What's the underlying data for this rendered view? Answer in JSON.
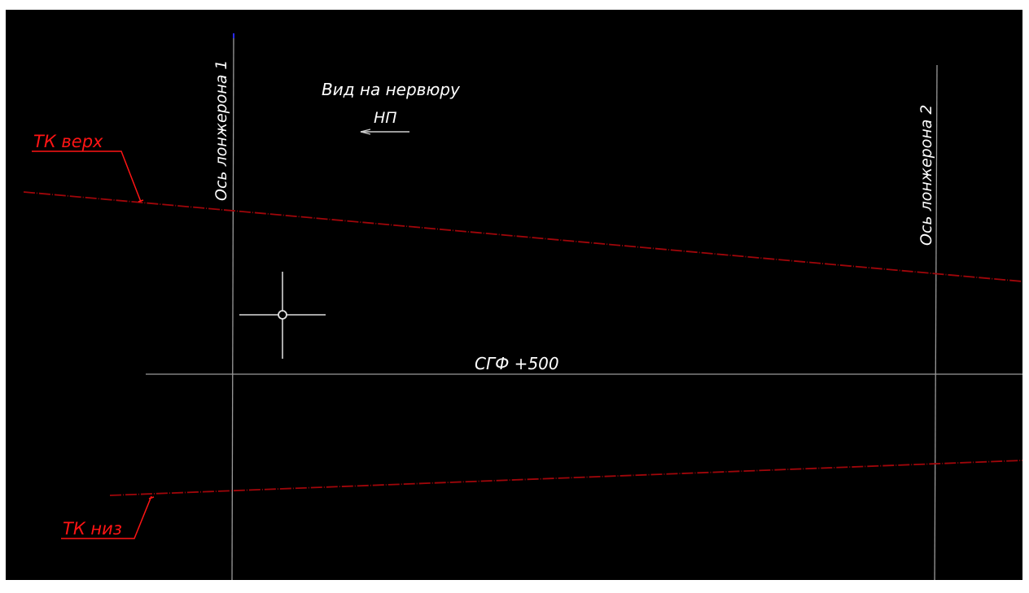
{
  "drawing": {
    "spar_axis_1_label": "Ось лонжерона 1",
    "spar_axis_2_label": "Ось лонжерона 2",
    "view_title": "Вид на нервюру",
    "view_direction_label": "НП",
    "upper_contour_label": "ТК верх",
    "lower_contour_label": "ТК низ",
    "reference_line_label": "СГФ +500"
  },
  "colors": {
    "background": "#000000",
    "frame": "#ffffff",
    "axis_line": "#9a9a9a",
    "contour_line": "#a0060a",
    "label_red": "#ff1414",
    "text_white": "#ffffff",
    "cursor": "#bdbdbd",
    "axis_endpoint": "#2a2aff"
  },
  "cursor": {
    "icon": "crosshair-pickbox"
  }
}
